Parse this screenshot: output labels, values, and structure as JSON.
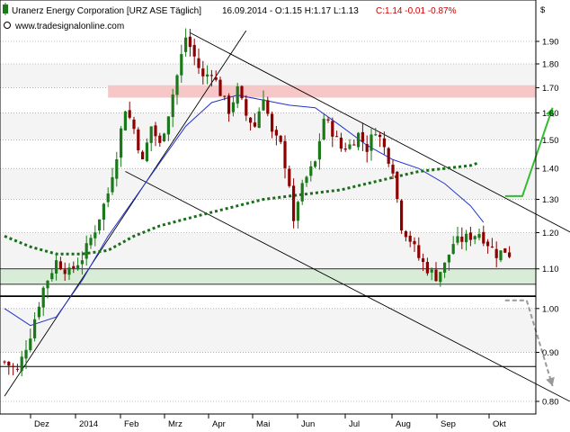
{
  "header": {
    "title": "Uranerz Energy Corporation [URZ ASE  Täglich]",
    "ohlc": "16.09.2014 - O:1.15 H:1.17 L:1.13",
    "change": "C:1.14 -0.01 -0.87%",
    "website": "www.tradesignalonline.com",
    "currency": "$"
  },
  "colors": {
    "candle_up": "#1a7a1a",
    "candle_down": "#8b0000",
    "sma_short": "#2233cc",
    "sma_long": "#1a6e1a",
    "resistance_zone": "#f7c6c6",
    "support_zone": "#d8ecd8",
    "forecast_up": "#33bb33",
    "forecast_down": "#999999"
  },
  "chart_data": {
    "type": "candlestick",
    "title": "Uranerz Energy Corporation [URZ ASE  Täglich]",
    "yticks": [
      "1.90",
      "1.80",
      "1.70",
      "1.60",
      "1.50",
      "1.40",
      "1.30",
      "1.20",
      "1.10",
      "1.00",
      "0.90",
      "0.80"
    ],
    "xticks": [
      "Dez",
      "2014",
      "Feb",
      "Mrz",
      "Apr",
      "Mai",
      "Jun",
      "Jul",
      "Aug",
      "Sep",
      "Okt"
    ],
    "ylim": [
      0.78,
      1.98
    ],
    "scale": "log",
    "resistance_zone": [
      1.66,
      1.71
    ],
    "support_zone": [
      1.06,
      1.1
    ],
    "horizontal_lines": [
      1.03,
      0.87
    ],
    "price_path": [
      [
        0,
        0.88
      ],
      [
        3,
        0.86
      ],
      [
        6,
        0.94
      ],
      [
        9,
        1.05
      ],
      [
        12,
        1.12
      ],
      [
        15,
        1.09
      ],
      [
        18,
        1.13
      ],
      [
        21,
        1.21
      ],
      [
        24,
        1.32
      ],
      [
        26,
        1.45
      ],
      [
        28,
        1.62
      ],
      [
        30,
        1.54
      ],
      [
        32,
        1.42
      ],
      [
        34,
        1.55
      ],
      [
        36,
        1.48
      ],
      [
        38,
        1.6
      ],
      [
        40,
        1.75
      ],
      [
        42,
        1.92
      ],
      [
        44,
        1.83
      ],
      [
        46,
        1.74
      ],
      [
        48,
        1.77
      ],
      [
        50,
        1.68
      ],
      [
        52,
        1.61
      ],
      [
        54,
        1.69
      ],
      [
        56,
        1.59
      ],
      [
        58,
        1.55
      ],
      [
        60,
        1.67
      ],
      [
        62,
        1.52
      ],
      [
        64,
        1.48
      ],
      [
        66,
        1.35
      ],
      [
        67,
        1.22
      ],
      [
        68,
        1.3
      ],
      [
        70,
        1.37
      ],
      [
        72,
        1.42
      ],
      [
        74,
        1.58
      ],
      [
        76,
        1.53
      ],
      [
        78,
        1.47
      ],
      [
        80,
        1.48
      ],
      [
        82,
        1.52
      ],
      [
        84,
        1.47
      ],
      [
        86,
        1.54
      ],
      [
        88,
        1.47
      ],
      [
        90,
        1.4
      ],
      [
        91,
        1.3
      ],
      [
        92,
        1.22
      ],
      [
        94,
        1.18
      ],
      [
        96,
        1.13
      ],
      [
        98,
        1.1
      ],
      [
        100,
        1.08
      ],
      [
        102,
        1.11
      ],
      [
        104,
        1.17
      ],
      [
        106,
        1.18
      ],
      [
        108,
        1.19
      ],
      [
        110,
        1.2
      ],
      [
        112,
        1.17
      ],
      [
        114,
        1.14
      ],
      [
        116,
        1.15
      ],
      [
        117,
        1.14
      ]
    ],
    "sma_short": [
      [
        0,
        1.0
      ],
      [
        6,
        0.96
      ],
      [
        12,
        0.98
      ],
      [
        18,
        1.07
      ],
      [
        24,
        1.19
      ],
      [
        30,
        1.3
      ],
      [
        36,
        1.42
      ],
      [
        42,
        1.55
      ],
      [
        48,
        1.64
      ],
      [
        54,
        1.67
      ],
      [
        60,
        1.65
      ],
      [
        66,
        1.63
      ],
      [
        72,
        1.62
      ],
      [
        78,
        1.55
      ],
      [
        84,
        1.48
      ],
      [
        90,
        1.43
      ],
      [
        96,
        1.4
      ],
      [
        102,
        1.35
      ],
      [
        108,
        1.28
      ],
      [
        111,
        1.23
      ]
    ],
    "sma_long": [
      [
        0,
        1.19
      ],
      [
        6,
        1.16
      ],
      [
        12,
        1.14
      ],
      [
        18,
        1.14
      ],
      [
        24,
        1.15
      ],
      [
        30,
        1.19
      ],
      [
        36,
        1.22
      ],
      [
        42,
        1.24
      ],
      [
        48,
        1.26
      ],
      [
        54,
        1.28
      ],
      [
        60,
        1.3
      ],
      [
        66,
        1.31
      ],
      [
        72,
        1.32
      ],
      [
        78,
        1.33
      ],
      [
        84,
        1.35
      ],
      [
        90,
        1.37
      ],
      [
        96,
        1.39
      ],
      [
        102,
        1.4
      ],
      [
        108,
        1.41
      ],
      [
        110,
        1.42
      ]
    ],
    "trendlines": [
      [
        [
          0,
          0.81
        ],
        [
          56,
          1.95
        ]
      ],
      [
        [
          43,
          1.94
        ],
        [
          136,
          1.17
        ]
      ],
      [
        [
          28,
          1.39
        ],
        [
          131,
          0.8
        ]
      ]
    ],
    "forecast_up": [
      [
        116,
        1.31
      ],
      [
        120,
        1.31
      ],
      [
        127,
        1.62
      ]
    ],
    "forecast_down": [
      [
        116,
        1.02
      ],
      [
        121,
        1.02
      ],
      [
        127,
        0.83
      ]
    ]
  }
}
